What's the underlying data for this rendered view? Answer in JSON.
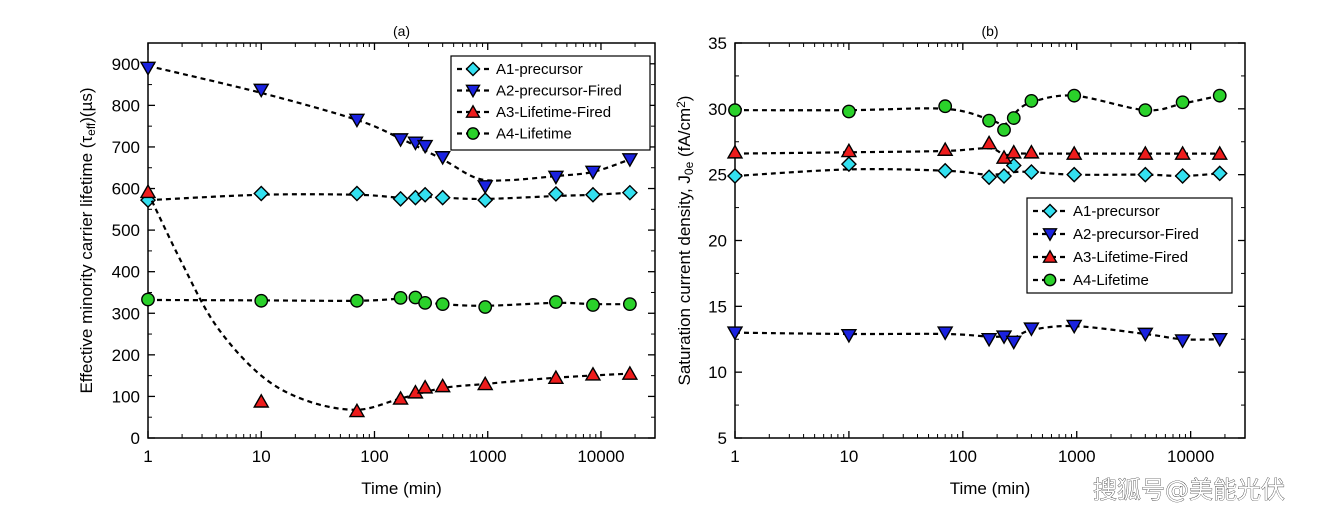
{
  "chart_data": [
    {
      "type": "scatter",
      "title": "(a)",
      "xlabel": "Time (min)",
      "ylabel_parts": [
        "Effective minority carrier lifetime (τ",
        "eff",
        ")(µs)"
      ],
      "xscale": "log",
      "xlim": [
        1,
        30000
      ],
      "ylim": [
        0,
        950
      ],
      "xticks": [
        1,
        10,
        100,
        1000,
        10000
      ],
      "xtick_labels": [
        "1",
        "10",
        "100",
        "1000",
        "10000"
      ],
      "yticks": [
        0,
        100,
        200,
        300,
        400,
        500,
        600,
        700,
        800,
        900
      ],
      "legend_position": "top-right",
      "series": [
        {
          "name": "A1-precursor",
          "marker": "diamond",
          "color": "#33e0f0",
          "x": [
            1,
            10,
            70,
            170,
            230,
            280,
            400,
            950,
            4000,
            8500,
            18000
          ],
          "y": [
            572,
            588,
            588,
            575,
            578,
            585,
            578,
            572,
            587,
            585,
            590
          ],
          "fit_x": [
            1,
            10,
            70,
            170,
            280,
            400,
            950,
            4000,
            8500,
            18000
          ],
          "fit_y": [
            572,
            585,
            585,
            578,
            580,
            578,
            575,
            582,
            585,
            590
          ]
        },
        {
          "name": "A2-precursor-Fired",
          "marker": "triangle-down",
          "color": "#1a22e0",
          "x": [
            1,
            10,
            70,
            170,
            230,
            280,
            400,
            950,
            4000,
            8500,
            18000
          ],
          "y": [
            890,
            837,
            765,
            718,
            710,
            702,
            675,
            605,
            628,
            640,
            670
          ],
          "fit_x": [
            1,
            10,
            70,
            170,
            400,
            800,
            1500,
            4000,
            8500,
            18000
          ],
          "fit_y": [
            895,
            830,
            765,
            720,
            670,
            625,
            620,
            630,
            640,
            670
          ]
        },
        {
          "name": "A3-Lifetime-Fired",
          "marker": "triangle-up",
          "color": "#ee1c1c",
          "x": [
            1,
            10,
            70,
            170,
            230,
            280,
            400,
            950,
            4000,
            8500,
            18000
          ],
          "y": [
            592,
            88,
            65,
            95,
            110,
            122,
            125,
            130,
            145,
            153,
            155
          ],
          "fit_x": [
            1,
            2,
            4,
            10,
            25,
            70,
            170,
            400,
            950,
            4000,
            18000
          ],
          "fit_y": [
            590,
            420,
            270,
            150,
            90,
            68,
            95,
            120,
            130,
            145,
            155
          ]
        },
        {
          "name": "A4-Lifetime",
          "marker": "circle",
          "color": "#2ad12a",
          "x": [
            1,
            10,
            70,
            170,
            230,
            280,
            400,
            950,
            4000,
            8500,
            18000
          ],
          "y": [
            333,
            330,
            330,
            337,
            338,
            325,
            322,
            315,
            327,
            320,
            322
          ],
          "fit_x": [
            1,
            10,
            70,
            170,
            230,
            280,
            400,
            950,
            4000,
            8500,
            18000
          ],
          "fit_y": [
            332,
            331,
            330,
            335,
            335,
            328,
            322,
            318,
            325,
            322,
            322
          ]
        }
      ]
    },
    {
      "type": "scatter",
      "title": "(b)",
      "xlabel": "Time (min)",
      "ylabel_parts": [
        "Saturation current density, J",
        "0e",
        " (fA/cm",
        "2",
        ")"
      ],
      "xscale": "log",
      "xlim": [
        1,
        30000
      ],
      "ylim": [
        5,
        35
      ],
      "xticks": [
        1,
        10,
        100,
        1000,
        10000
      ],
      "xtick_labels": [
        "1",
        "10",
        "100",
        "1000",
        "10000"
      ],
      "yticks": [
        5,
        10,
        15,
        20,
        25,
        30,
        35
      ],
      "legend_position": "center-right",
      "series": [
        {
          "name": "A1-precursor",
          "marker": "diamond",
          "color": "#33e0f0",
          "x": [
            1,
            10,
            70,
            170,
            230,
            280,
            400,
            950,
            4000,
            8500,
            18000
          ],
          "y": [
            24.9,
            25.8,
            25.3,
            24.8,
            24.9,
            25.7,
            25.2,
            25.0,
            25.0,
            24.9,
            25.1
          ],
          "fit_x": [
            1,
            10,
            70,
            170,
            280,
            400,
            950,
            4000,
            8500,
            18000
          ],
          "fit_y": [
            24.9,
            25.4,
            25.3,
            25.0,
            25.2,
            25.2,
            25.0,
            25.0,
            24.9,
            25.1
          ]
        },
        {
          "name": "A2-precursor-Fired",
          "marker": "triangle-down",
          "color": "#1a22e0",
          "x": [
            1,
            10,
            70,
            170,
            230,
            280,
            400,
            950,
            4000,
            8500,
            18000
          ],
          "y": [
            13.0,
            12.8,
            13.0,
            12.5,
            12.7,
            12.3,
            13.3,
            13.5,
            12.9,
            12.4,
            12.5
          ],
          "fit_x": [
            1,
            10,
            70,
            170,
            230,
            280,
            400,
            950,
            4000,
            8500,
            18000
          ],
          "fit_y": [
            13.0,
            12.9,
            12.9,
            12.7,
            12.7,
            12.6,
            13.2,
            13.5,
            12.9,
            12.5,
            12.5
          ]
        },
        {
          "name": "A3-Lifetime-Fired",
          "marker": "triangle-up",
          "color": "#ee1c1c",
          "x": [
            1,
            10,
            70,
            170,
            230,
            280,
            400,
            950,
            4000,
            8500,
            18000
          ],
          "y": [
            26.7,
            26.8,
            26.9,
            27.4,
            26.3,
            26.7,
            26.7,
            26.6,
            26.6,
            26.6,
            26.6
          ],
          "fit_x": [
            1,
            10,
            70,
            170,
            230,
            280,
            400,
            950,
            4000,
            8500,
            18000
          ],
          "fit_y": [
            26.6,
            26.7,
            26.8,
            27.0,
            26.5,
            26.6,
            26.6,
            26.6,
            26.6,
            26.6,
            26.6
          ]
        },
        {
          "name": "A4-Lifetime",
          "marker": "circle",
          "color": "#2ad12a",
          "x": [
            1,
            10,
            70,
            170,
            230,
            280,
            400,
            950,
            4000,
            8500,
            18000
          ],
          "y": [
            29.9,
            29.8,
            30.2,
            29.1,
            28.4,
            29.3,
            30.6,
            31.0,
            29.9,
            30.5,
            31.0
          ],
          "fit_x": [
            1,
            10,
            70,
            170,
            230,
            280,
            400,
            950,
            4000,
            8500,
            18000
          ],
          "fit_y": [
            29.9,
            29.9,
            30.0,
            29.2,
            28.8,
            29.6,
            30.5,
            31.0,
            29.9,
            30.4,
            31.0
          ]
        }
      ]
    }
  ],
  "watermark": "搜狐号@美能光伏"
}
